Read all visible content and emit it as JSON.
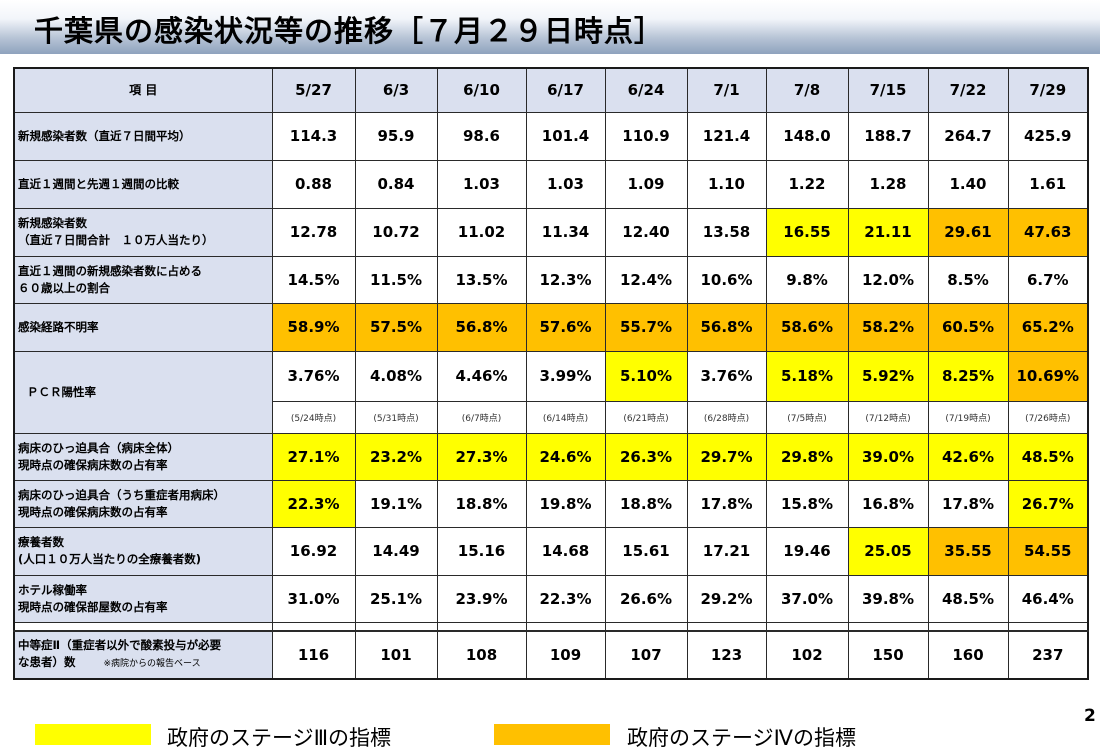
{
  "title": "千葉県の感染状況等の推移［７月２９日時点］",
  "header": {
    "item_label": "項 目",
    "dates": [
      "5/27",
      "6/3",
      "6/10",
      "6/17",
      "6/24",
      "7/1",
      "7/8",
      "7/15",
      "7/22",
      "7/29"
    ]
  },
  "rows": {
    "new_cases_avg": {
      "label": "新規感染者数（直近７日間平均）",
      "values": [
        "114.3",
        "95.9",
        "98.6",
        "101.4",
        "110.9",
        "121.4",
        "148.0",
        "188.7",
        "264.7",
        "425.9"
      ]
    },
    "week_ratio": {
      "label": "直近１週間と先週１週間の比較",
      "values": [
        "0.88",
        "0.84",
        "1.03",
        "1.03",
        "1.09",
        "1.10",
        "1.22",
        "1.28",
        "1.40",
        "1.61"
      ]
    },
    "new_cases_per100k": {
      "label_line1": "新規感染者数",
      "label_line2": "（直近７日間合計　１０万人当たり）",
      "values": [
        "12.78",
        "10.72",
        "11.02",
        "11.34",
        "12.40",
        "13.58",
        "16.55",
        "21.11",
        "29.61",
        "47.63"
      ]
    },
    "over60_share": {
      "label_line1": "直近１週間の新規感染者数に占める",
      "label_line2": "６０歳以上の割合",
      "values": [
        "14.5%",
        "11.5%",
        "13.5%",
        "12.3%",
        "12.4%",
        "10.6%",
        "9.8%",
        "12.0%",
        "8.5%",
        "6.7%"
      ]
    },
    "unknown_route": {
      "label": "感染経路不明率",
      "values": [
        "58.9%",
        "57.5%",
        "56.8%",
        "57.6%",
        "55.7%",
        "56.8%",
        "58.6%",
        "58.2%",
        "60.5%",
        "65.2%"
      ]
    },
    "pcr": {
      "label": "ＰＣＲ陽性率",
      "values": [
        "3.76%",
        "4.08%",
        "4.46%",
        "3.99%",
        "5.10%",
        "3.76%",
        "5.18%",
        "5.92%",
        "8.25%",
        "10.69%"
      ],
      "as_of": [
        "(5/24時点)",
        "(5/31時点)",
        "(6/7時点)",
        "(6/14時点)",
        "(6/21時点)",
        "(6/28時点)",
        "(7/5時点)",
        "(7/12時点)",
        "(7/19時点)",
        "(7/26時点)"
      ]
    },
    "bed_all": {
      "label_line1": "病床のひっ迫具合（病床全体）",
      "label_line2": " 現時点の確保病床数の占有率",
      "values": [
        "27.1%",
        "23.2%",
        "27.3%",
        "24.6%",
        "26.3%",
        "29.7%",
        "29.8%",
        "39.0%",
        "42.6%",
        "48.5%"
      ]
    },
    "bed_severe": {
      "label_line1": "病床のひっ迫具合（うち重症者用病床）",
      "label_line2": " 現時点の確保病床数の占有率",
      "values": [
        "22.3%",
        "19.1%",
        "18.8%",
        "19.8%",
        "18.8%",
        "17.8%",
        "15.8%",
        "16.8%",
        "17.8%",
        "26.7%"
      ]
    },
    "recuperating": {
      "label_line1": "療養者数",
      "label_line2": "(人口１０万人当たりの全療養者数)",
      "values": [
        "16.92",
        "14.49",
        "15.16",
        "14.68",
        "15.61",
        "17.21",
        "19.46",
        "25.05",
        "35.55",
        "54.55"
      ]
    },
    "hotel": {
      "label_line1": "ホテル稼働率",
      "label_line2": "現時点の確保部屋数の占有率",
      "values": [
        "31.0%",
        "25.1%",
        "23.9%",
        "22.3%",
        "26.6%",
        "29.2%",
        "37.0%",
        "39.8%",
        "48.5%",
        "46.4%"
      ]
    },
    "moderate2": {
      "label_line1": "中等症Ⅱ（重症者以外で酸素投与が必要",
      "label_line2": "な患者）数",
      "note": "※病院からの報告ベース",
      "values": [
        "116",
        "101",
        "108",
        "109",
        "107",
        "123",
        "102",
        "150",
        "160",
        "237"
      ]
    }
  },
  "legend": {
    "stage3": "政府のステージⅢの指標",
    "stage4": "政府のステージⅣの指標",
    "stage3_color": "#ffff00",
    "stage4_color": "#ffc000"
  },
  "page_number": "2"
}
